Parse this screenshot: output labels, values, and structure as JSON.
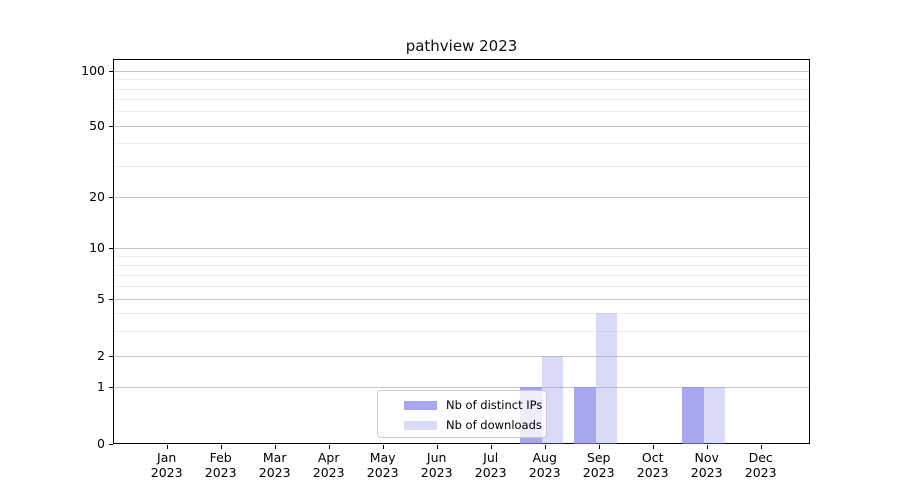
{
  "chart_data": {
    "type": "bar",
    "title": "pathview 2023",
    "xlabel": "",
    "ylabel": "",
    "categories": [
      "Jan 2023",
      "Feb 2023",
      "Mar 2023",
      "Apr 2023",
      "May 2023",
      "Jun 2023",
      "Jul 2023",
      "Aug 2023",
      "Sep 2023",
      "Oct 2023",
      "Nov 2023",
      "Dec 2023"
    ],
    "series": [
      {
        "name": "Nb of distinct IPs",
        "color": "#a7a7f3",
        "fill": "rgba(133,133,236,0.72)",
        "values": [
          0,
          0,
          0,
          0,
          0,
          0,
          0,
          1,
          1,
          0,
          1,
          0
        ]
      },
      {
        "name": "Nb of downloads",
        "color": "#d9d9f8",
        "fill": "rgba(146,146,235,0.35)",
        "values": [
          0,
          0,
          0,
          0,
          0,
          0,
          0,
          2,
          4,
          0,
          1,
          0
        ]
      }
    ],
    "y_ticks": [
      0,
      1,
      2,
      5,
      10,
      20,
      50,
      100
    ],
    "y_minor_ticks": [
      3,
      4,
      6,
      7,
      8,
      9,
      30,
      40,
      60,
      70,
      80,
      90
    ],
    "ylim": [
      0,
      115
    ],
    "y_scale": "log above 1, linear 0-1",
    "grid": "horizontal major and minor",
    "legend_position": "inside lower center-right"
  },
  "colors": {
    "background": "#ffffff",
    "axis": "#000000",
    "grid_major": "#c6c6c6",
    "grid_minor": "#ececec",
    "legend_border": "#c9c9c9",
    "text": "#000000"
  }
}
